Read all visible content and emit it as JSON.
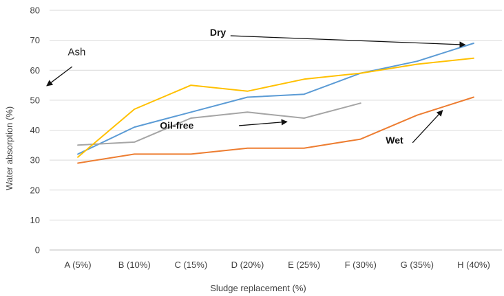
{
  "chart_data": {
    "type": "line",
    "title": "",
    "xlabel": "Sludge replacement (%)",
    "ylabel": "Water absorption (%)",
    "categories": [
      "A (5%)",
      "B (10%)",
      "C (15%)",
      "D (20%)",
      "E (25%)",
      "F (30%)",
      "G (35%)",
      "H (40%)"
    ],
    "ylim": [
      0,
      80
    ],
    "yticks": [
      0,
      10,
      20,
      30,
      40,
      50,
      60,
      70,
      80
    ],
    "grid": true,
    "legend": "none",
    "series": [
      {
        "name": "Dry",
        "color": "#5b9bd5",
        "values": [
          32,
          41,
          46,
          51,
          52,
          59,
          63,
          69
        ]
      },
      {
        "name": "Wet",
        "color": "#ed7d31",
        "values": [
          29,
          32,
          32,
          34,
          34,
          37,
          45,
          51
        ]
      },
      {
        "name": "Oil-free",
        "color": "#a5a5a5",
        "values": [
          35,
          36,
          44,
          46,
          44,
          49,
          null,
          null
        ]
      },
      {
        "name": "Ash",
        "color": "#ffc000",
        "values": [
          31,
          47,
          55,
          53,
          57,
          59,
          62,
          64
        ]
      }
    ],
    "annotations": [
      {
        "text": "Dry",
        "style": "bold",
        "arrow_from_data": [
          2.7,
          71.5
        ],
        "arrow_to_data": [
          6.85,
          68.5
        ],
        "label_at_data": [
          2.62,
          71.5
        ],
        "anchor": "end"
      },
      {
        "text": "Ash",
        "style": "plain",
        "arrow_from_data": [
          -0.1,
          61.2
        ],
        "arrow_to_data": [
          -0.55,
          54.8
        ],
        "label_at_data": [
          -0.02,
          65
        ],
        "anchor": "middle"
      },
      {
        "text": "Oil-free",
        "style": "bold",
        "arrow_from_data": [
          2.85,
          41.5
        ],
        "arrow_to_data": [
          3.7,
          42.8
        ],
        "label_at_data": [
          1.75,
          40.5
        ],
        "anchor": "middle"
      },
      {
        "text": "Wet",
        "style": "bold",
        "arrow_from_data": [
          5.92,
          35.8
        ],
        "arrow_to_data": [
          6.45,
          46.6
        ],
        "label_at_data": [
          5.6,
          35.5
        ],
        "anchor": "middle"
      }
    ]
  }
}
